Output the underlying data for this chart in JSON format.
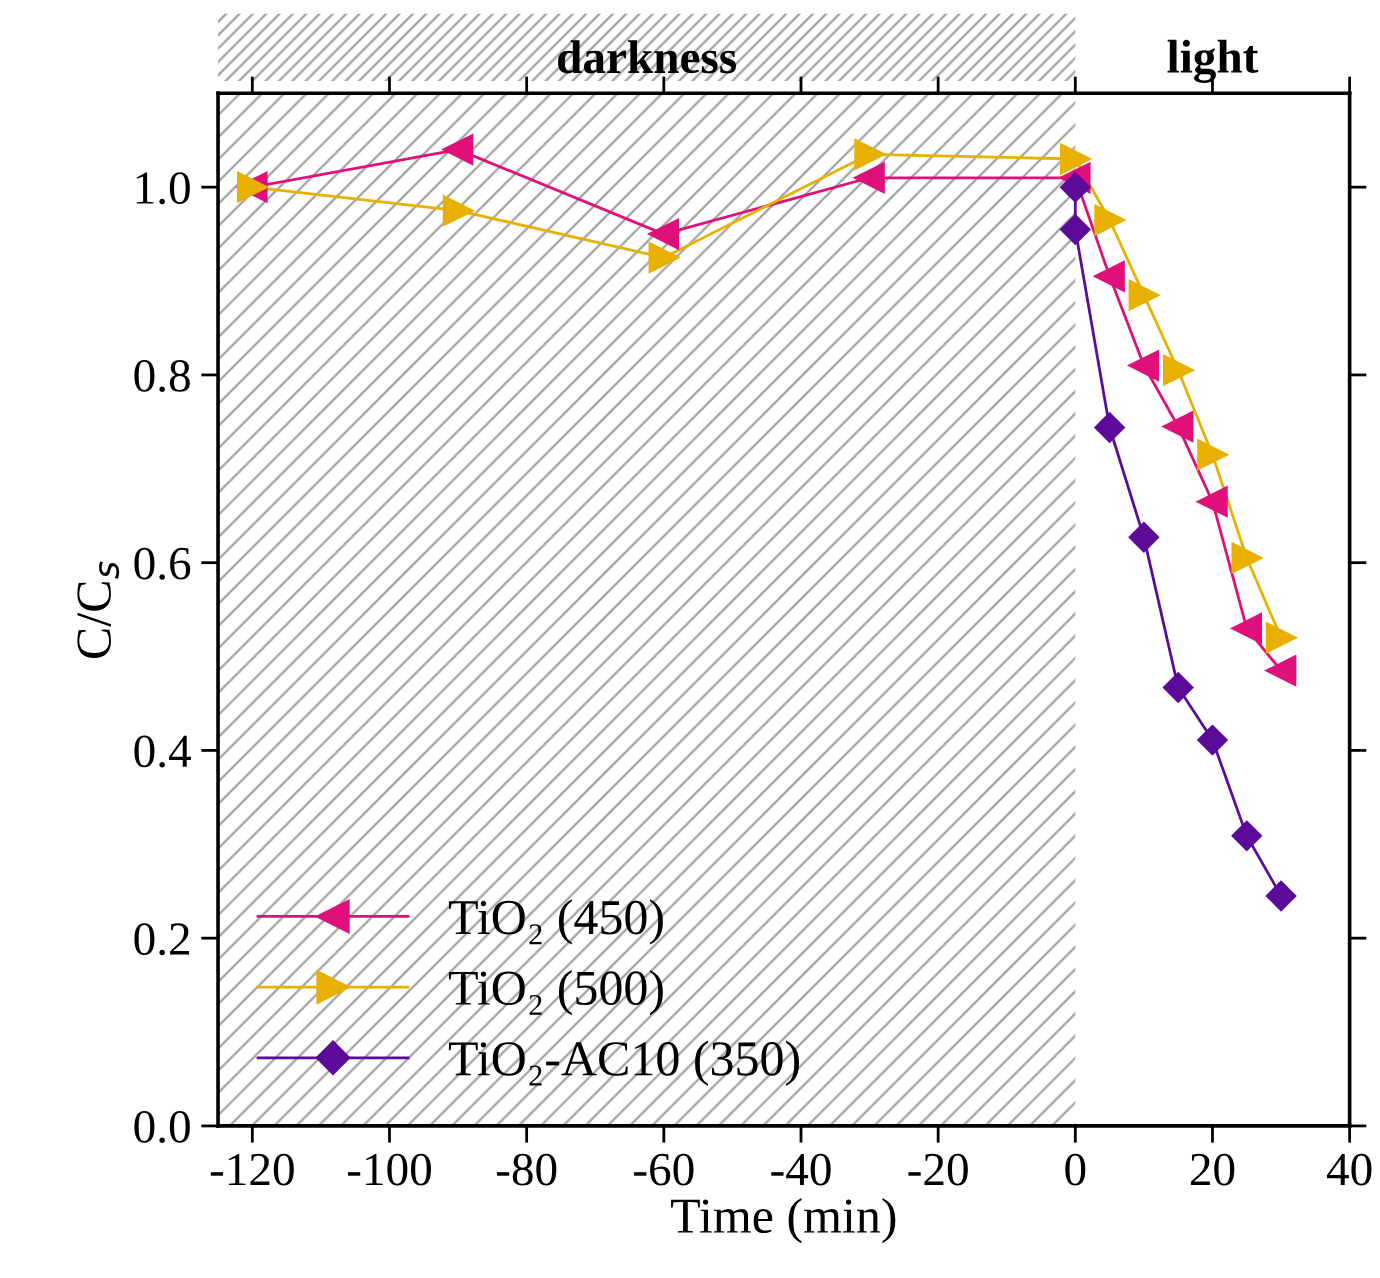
{
  "chart_data": {
    "type": "line",
    "xlabel": "Time (min)",
    "ylabel": "C/C$_{s}$",
    "xlim": [
      -125,
      40
    ],
    "xticks": [
      -120,
      -100,
      -80,
      -60,
      -40,
      -20,
      0,
      20,
      40
    ],
    "ylim": [
      0,
      1.1
    ],
    "yticks": [
      {
        "value": 0,
        "label": "0.0"
      },
      0.2,
      0.4,
      0.6,
      0.8,
      {
        "value": 1,
        "label": "1.0"
      }
    ],
    "legend": "bottom left",
    "grid": false,
    "bands": [
      {
        "axis": "x",
        "from": -125,
        "to": 0,
        "label": "darkness",
        "color": "#a0a0a0"
      }
    ],
    "annotations": [
      "light"
    ],
    "series": [
      {
        "name": "TiO₂ (450)",
        "color": "#e0107a",
        "marker": "triangle_left",
        "x": [
          -120,
          -90,
          -60,
          -30,
          0,
          5,
          10,
          15,
          20,
          25,
          30
        ],
        "values": [
          1.0,
          1.04,
          0.95,
          1.01,
          1.01,
          0.905,
          0.81,
          0.745,
          0.665,
          0.53,
          0.485
        ]
      },
      {
        "name": "TiO₂ (500)",
        "color": "#e8b000",
        "marker": "triangle_right",
        "x": [
          -120,
          -90,
          -60,
          -30,
          0,
          5,
          10,
          15,
          20,
          25,
          30
        ],
        "values": [
          1.0,
          0.975,
          0.925,
          1.035,
          1.03,
          0.965,
          0.885,
          0.805,
          0.715,
          0.605,
          0.52
        ]
      },
      {
        "name": "TiO₂-AC10 (350)",
        "color": "#5c0a9a",
        "marker": "diamond",
        "x": [
          0,
          0,
          5,
          10,
          15,
          20,
          25,
          30
        ],
        "values": [
          1.0,
          0.955,
          0.744,
          0.627,
          0.467,
          0.411,
          0.309,
          0.245
        ]
      }
    ]
  }
}
